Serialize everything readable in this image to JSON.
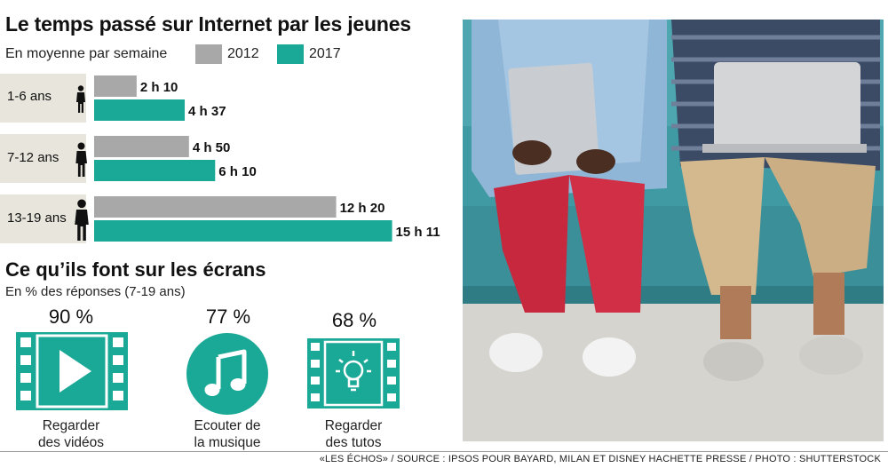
{
  "header": {
    "title": "Le temps passé sur Internet par les jeunes",
    "subtitle": "En moyenne par semaine"
  },
  "legend": [
    {
      "label": "2012",
      "color": "#a8a8a8"
    },
    {
      "label": "2017",
      "color": "#1ba997"
    }
  ],
  "chart_data": {
    "type": "bar",
    "orientation": "horizontal",
    "title": "Le temps passé sur Internet par les jeunes",
    "subtitle": "En moyenne par semaine",
    "unit": "heures",
    "categories": [
      "1-6 ans",
      "7-12 ans",
      "13-19 ans"
    ],
    "series": [
      {
        "name": "2012",
        "color": "#a8a8a8",
        "values": [
          2.1667,
          4.8333,
          12.3333
        ],
        "labels": [
          "2 h 10",
          "4 h 50",
          "12 h 20"
        ]
      },
      {
        "name": "2017",
        "color": "#1ba997",
        "values": [
          4.6167,
          6.1667,
          15.1833
        ],
        "labels": [
          "4 h 37",
          "6 h 10",
          "15 h 11"
        ]
      }
    ],
    "legend": "top"
  },
  "activities": {
    "title": "Ce qu’ils font sur les écrans",
    "subtitle": "En % des réponses (7-19 ans)",
    "items": [
      {
        "percent": "90 %",
        "label_line1": "Regarder",
        "label_line2": "des vidéos",
        "icon": "video-play-icon"
      },
      {
        "percent": "77 %",
        "label_line1": "Ecouter de",
        "label_line2": "la musique",
        "icon": "music-note-icon"
      },
      {
        "percent": "68 %",
        "label_line1": "Regarder",
        "label_line2": "des tutos",
        "icon": "lightbulb-film-icon"
      }
    ]
  },
  "photo": {
    "description_icon": "photo-teens-with-devices"
  },
  "footer": {
    "credit": "«LES ÉCHOS» / SOURCE : IPSOS POUR BAYARD, MILAN ET DISNEY HACHETTE PRESSE / PHOTO : SHUTTERSTOCK"
  }
}
